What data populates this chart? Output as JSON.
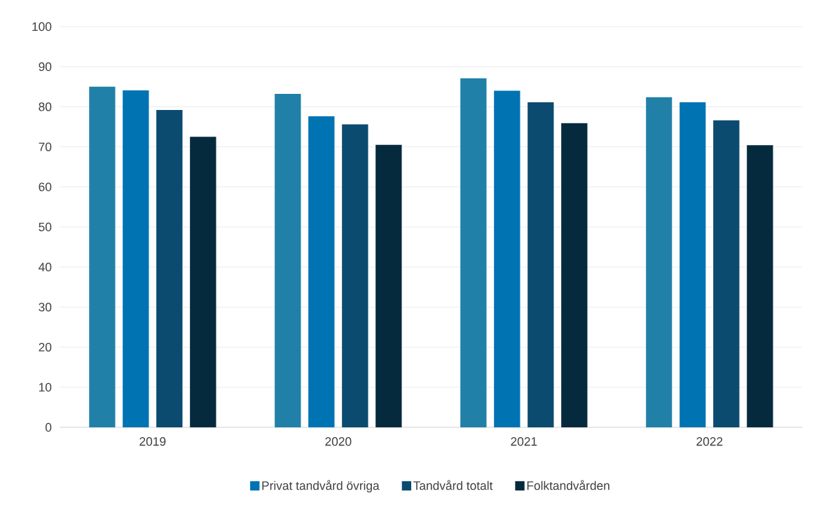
{
  "chart_data": {
    "type": "bar",
    "categories": [
      "2019",
      "2020",
      "2021",
      "2022"
    ],
    "series": [
      {
        "color": "#2180a8",
        "values": [
          85.0,
          83.2,
          87.1,
          82.4
        ]
      },
      {
        "name": "Privat tandvård övriga",
        "color": "#0073b3",
        "values": [
          84.1,
          77.6,
          84.0,
          81.1
        ]
      },
      {
        "name": "Tandvård totalt",
        "color": "#0b4b6f",
        "values": [
          79.2,
          75.6,
          81.1,
          76.6
        ]
      },
      {
        "name": "Folktandvården",
        "color": "#062a3d",
        "values": [
          72.5,
          70.5,
          75.9,
          70.4
        ]
      }
    ],
    "ylim": [
      0,
      100
    ],
    "yticks": [
      0,
      10,
      20,
      30,
      40,
      50,
      60,
      70,
      80,
      90,
      100
    ],
    "grid": "y",
    "legend": "bottom"
  }
}
